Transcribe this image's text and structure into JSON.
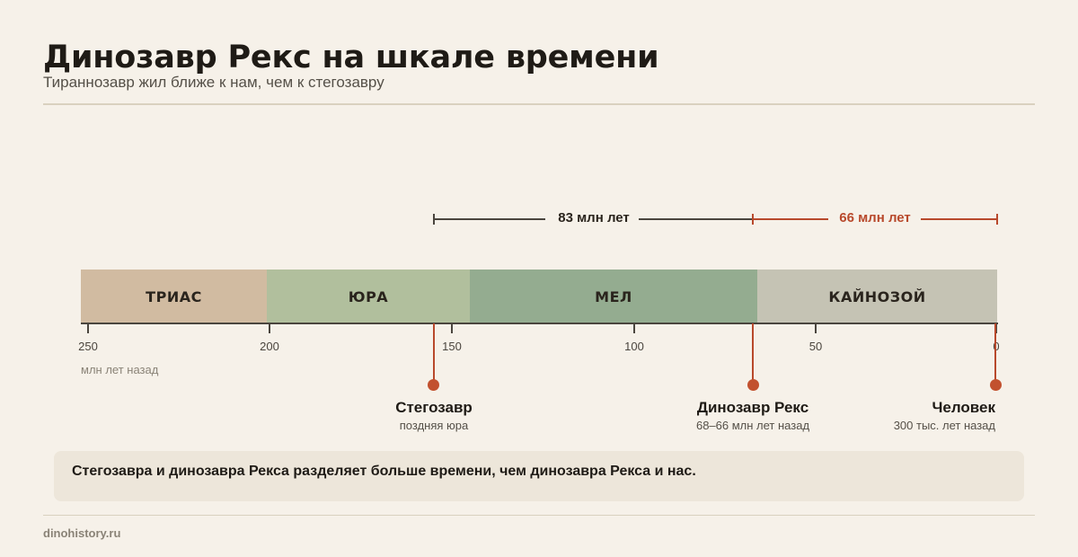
{
  "header": {
    "title": "Динозавр Рекс на шкале времени",
    "subtitle": "Тираннозавр жил ближе к нам, чем к стегозавру"
  },
  "timeline": {
    "axis_unit": "млн лет назад",
    "ticks": [
      "250",
      "200",
      "150",
      "100",
      "50",
      "0"
    ],
    "eras": [
      {
        "label": "ТРИАС",
        "color": "#d1bba1"
      },
      {
        "label": "ЮРА",
        "color": "#b1bf9d"
      },
      {
        "label": "МЕЛ",
        "color": "#94ac90"
      },
      {
        "label": "КАЙНОЗОЙ",
        "color": "#c5c3b4"
      }
    ],
    "spans": [
      {
        "label": "83 млн лет",
        "color": "#2a241d"
      },
      {
        "label": "66 млн лет",
        "color": "#b8492c"
      }
    ],
    "species": [
      {
        "name": "Стегозавр",
        "note": "поздняя юра"
      },
      {
        "name": "Динозавр Рекс",
        "note": "68–66 млн лет назад"
      },
      {
        "name": "Человек",
        "note": "300 тыс. лет назад"
      }
    ]
  },
  "callout": {
    "text": "Стегозавра и динозавра Рекса разделяет больше времени, чем динозавра Рекса и нас."
  },
  "footer": {
    "source": "dinohistory.ru"
  },
  "colors": {
    "accent": "#c2512f",
    "background": "#f6f1e9"
  }
}
